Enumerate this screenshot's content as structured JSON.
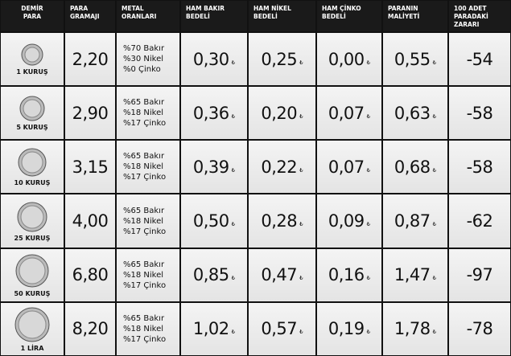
{
  "header": {
    "columns": [
      [
        "DEMİR",
        "PARA"
      ],
      [
        "PARA",
        "GRAMAJI"
      ],
      [
        "METAL",
        "ORANLARI"
      ],
      [
        "HAM BAKIR",
        "BEDELİ"
      ],
      [
        "HAM NİKEL",
        "BEDELİ"
      ],
      [
        "HAM ÇİNKO",
        "BEDELİ"
      ],
      [
        "PARANIN",
        "MALİYETİ"
      ],
      [
        "100 ADET",
        "PARADAKİ ZARARI"
      ]
    ]
  },
  "currency": "₺",
  "rows": [
    {
      "coin": "1 KURUŞ",
      "weight": "2,20",
      "metals": [
        "%70 Bakır",
        "%30 Nikel",
        "%0 Çinko"
      ],
      "copper": "0,30",
      "nickel": "0,25",
      "zinc": "0,00",
      "cost": "0,55",
      "loss": "-54"
    },
    {
      "coin": "5 KURUŞ",
      "weight": "2,90",
      "metals": [
        "%65 Bakır",
        "%18 Nikel",
        "%17 Çinko"
      ],
      "copper": "0,36",
      "nickel": "0,20",
      "zinc": "0,07",
      "cost": "0,63",
      "loss": "-58"
    },
    {
      "coin": "10 KURUŞ",
      "weight": "3,15",
      "metals": [
        "%65 Bakır",
        "%18 Nikel",
        "%17 Çinko"
      ],
      "copper": "0,39",
      "nickel": "0,22",
      "zinc": "0,07",
      "cost": "0,68",
      "loss": "-58"
    },
    {
      "coin": "25 KURUŞ",
      "weight": "4,00",
      "metals": [
        "%65 Bakır",
        "%18 Nikel",
        "%17 Çinko"
      ],
      "copper": "0,50",
      "nickel": "0,28",
      "zinc": "0,09",
      "cost": "0,87",
      "loss": "-62"
    },
    {
      "coin": "50 KURUŞ",
      "weight": "6,80",
      "metals": [
        "%65 Bakır",
        "%18 Nikel",
        "%17 Çinko"
      ],
      "copper": "0,85",
      "nickel": "0,47",
      "zinc": "0,16",
      "cost": "1,47",
      "loss": "-97"
    },
    {
      "coin": "1 LİRA",
      "weight": "8,20",
      "metals": [
        "%65 Bakır",
        "%18 Nikel",
        "%17 Çinko"
      ],
      "copper": "1,02",
      "nickel": "0,57",
      "zinc": "0,19",
      "cost": "1,78",
      "loss": "-78"
    }
  ]
}
